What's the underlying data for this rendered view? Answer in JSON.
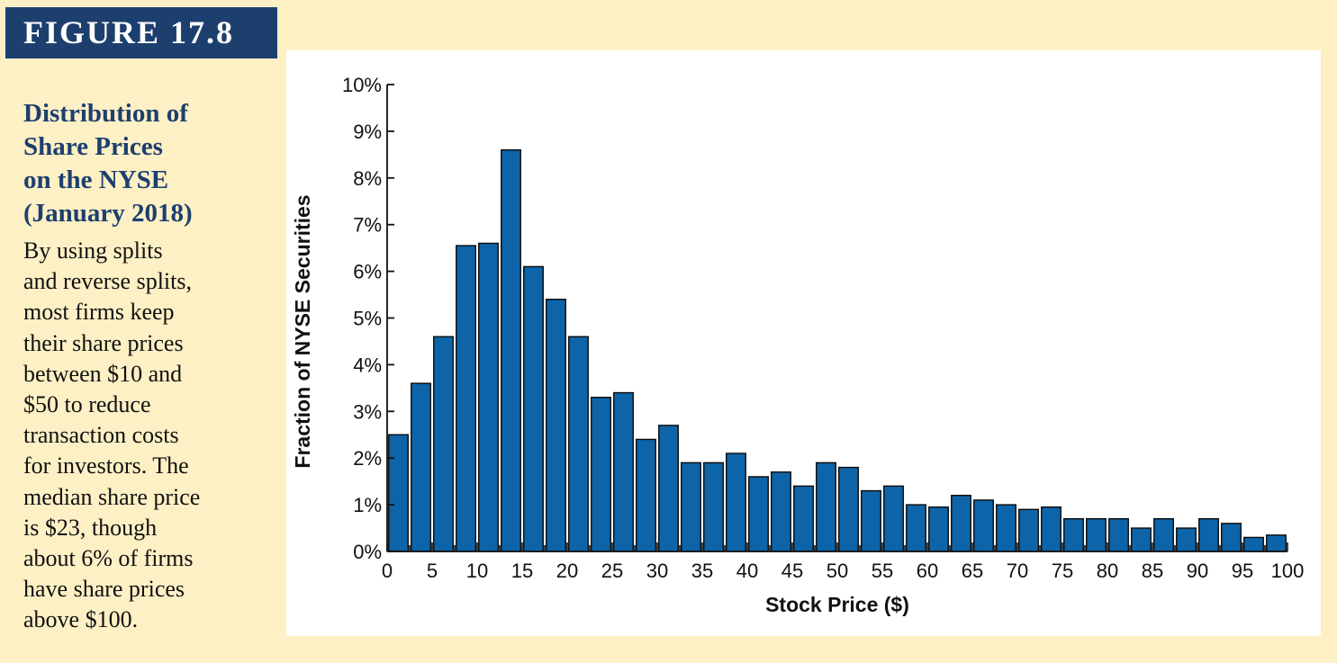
{
  "figure_label": "FIGURE 17.8",
  "sidebar": {
    "title": "Distribution of\nShare Prices\non the NYSE\n(January 2018)",
    "text": "By using splits\nand reverse splits,\nmost firms keep\ntheir share prices\nbetween $10 and\n$50 to reduce\ntransaction costs\nfor investors. The\nmedian share price\nis $23, though\nabout 6% of firms\nhave share prices\nabove $100."
  },
  "colors": {
    "bar": "#0e64a8",
    "figure_label_bg": "#1d3f6e",
    "page_bg": "#fdf0c5"
  },
  "chart_data": {
    "type": "bar",
    "title": "",
    "xlabel": "Stock Price ($)",
    "ylabel": "Fraction of NYSE Securities",
    "xlim": [
      0,
      100
    ],
    "ylim": [
      0,
      10
    ],
    "bin_width": 2.5,
    "x_tick_values": [
      0,
      5,
      10,
      15,
      20,
      25,
      30,
      35,
      40,
      45,
      50,
      55,
      60,
      65,
      70,
      75,
      80,
      85,
      90,
      95,
      100
    ],
    "x_tick_labels": [
      "0",
      "5",
      "10",
      "15",
      "20",
      "25",
      "30",
      "35",
      "40",
      "45",
      "50",
      "55",
      "60",
      "65",
      "70",
      "75",
      "80",
      "85",
      "90",
      "95",
      "100"
    ],
    "y_tick_values": [
      0,
      1,
      2,
      3,
      4,
      5,
      6,
      7,
      8,
      9,
      10
    ],
    "y_tick_labels": [
      "0%",
      "1%",
      "2%",
      "3%",
      "4%",
      "5%",
      "6%",
      "7%",
      "8%",
      "9%",
      "10%"
    ],
    "bins": [
      {
        "x": 0,
        "value": 2.5
      },
      {
        "x": 2.5,
        "value": 3.6
      },
      {
        "x": 5,
        "value": 4.6
      },
      {
        "x": 7.5,
        "value": 6.55
      },
      {
        "x": 10,
        "value": 6.6
      },
      {
        "x": 12.5,
        "value": 8.6
      },
      {
        "x": 15,
        "value": 6.1
      },
      {
        "x": 17.5,
        "value": 5.4
      },
      {
        "x": 20,
        "value": 4.6
      },
      {
        "x": 22.5,
        "value": 3.3
      },
      {
        "x": 25,
        "value": 3.4
      },
      {
        "x": 27.5,
        "value": 2.4
      },
      {
        "x": 30,
        "value": 2.7
      },
      {
        "x": 32.5,
        "value": 1.9
      },
      {
        "x": 35,
        "value": 1.9
      },
      {
        "x": 37.5,
        "value": 2.1
      },
      {
        "x": 40,
        "value": 1.6
      },
      {
        "x": 42.5,
        "value": 1.7
      },
      {
        "x": 45,
        "value": 1.4
      },
      {
        "x": 47.5,
        "value": 1.9
      },
      {
        "x": 50,
        "value": 1.8
      },
      {
        "x": 52.5,
        "value": 1.3
      },
      {
        "x": 55,
        "value": 1.4
      },
      {
        "x": 57.5,
        "value": 1.0
      },
      {
        "x": 60,
        "value": 0.95
      },
      {
        "x": 62.5,
        "value": 1.2
      },
      {
        "x": 65,
        "value": 1.1
      },
      {
        "x": 67.5,
        "value": 1.0
      },
      {
        "x": 70,
        "value": 0.9
      },
      {
        "x": 72.5,
        "value": 0.95
      },
      {
        "x": 75,
        "value": 0.7
      },
      {
        "x": 77.5,
        "value": 0.7
      },
      {
        "x": 80,
        "value": 0.7
      },
      {
        "x": 82.5,
        "value": 0.5
      },
      {
        "x": 85,
        "value": 0.7
      },
      {
        "x": 87.5,
        "value": 0.5
      },
      {
        "x": 90,
        "value": 0.7
      },
      {
        "x": 92.5,
        "value": 0.6
      },
      {
        "x": 95,
        "value": 0.3
      },
      {
        "x": 97.5,
        "value": 0.35
      }
    ]
  }
}
